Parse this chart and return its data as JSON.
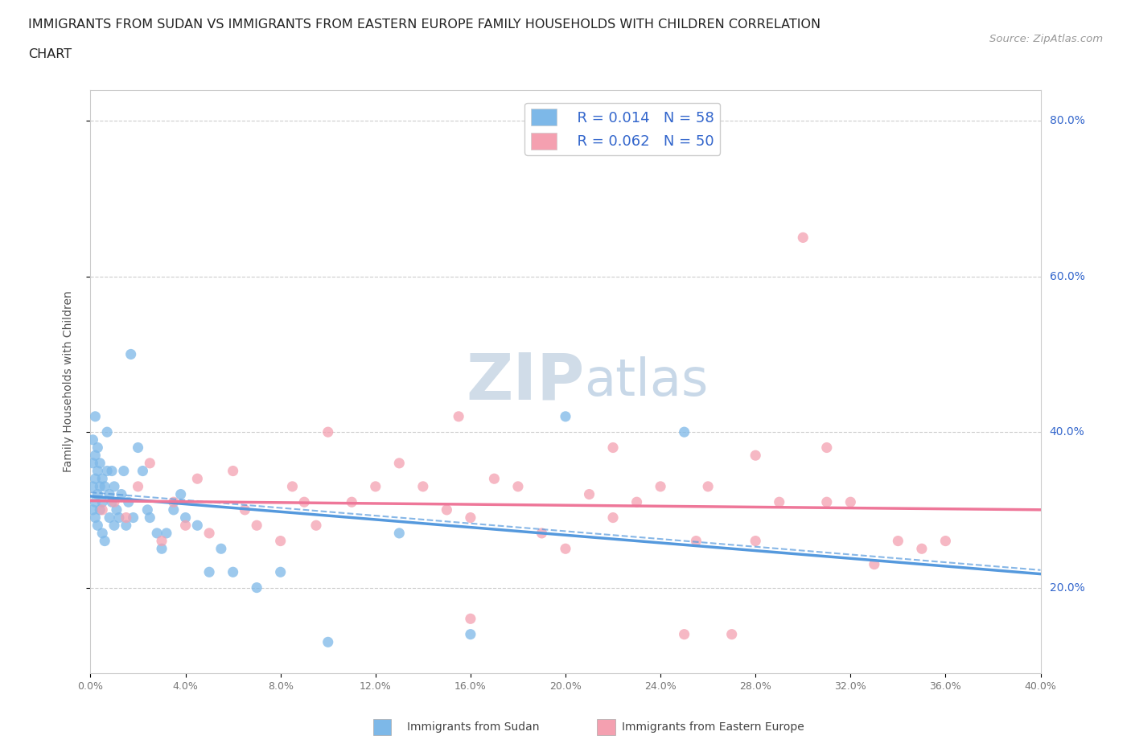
{
  "title_line1": "IMMIGRANTS FROM SUDAN VS IMMIGRANTS FROM EASTERN EUROPE FAMILY HOUSEHOLDS WITH CHILDREN CORRELATION",
  "title_line2": "CHART",
  "source": "Source: ZipAtlas.com",
  "ylabel": "Family Households with Children",
  "legend_label1": "Immigrants from Sudan",
  "legend_label2": "Immigrants from Eastern Europe",
  "r1": 0.014,
  "n1": 58,
  "r2": 0.062,
  "n2": 50,
  "color_sudan": "#7db8e8",
  "color_eastern": "#f4a0b0",
  "color_text_blue": "#3366cc",
  "color_line_sudan": "#5599dd",
  "color_line_eastern": "#ee7799",
  "xlim": [
    0.0,
    0.4
  ],
  "ylim": [
    0.09,
    0.84
  ],
  "yticks_right": [
    0.2,
    0.4,
    0.6,
    0.8
  ],
  "ytick_labels_right": [
    "20.0%",
    "40.0%",
    "60.0%",
    "80.0%"
  ],
  "background_color": "#ffffff",
  "grid_color": "#cccccc",
  "watermark_zip": "ZIP",
  "watermark_atlas": "atlas",
  "watermark_color_zip": "#d0dce8",
  "watermark_color_atlas": "#c8d8e8",
  "sudan_x": [
    0.001,
    0.001,
    0.001,
    0.001,
    0.002,
    0.002,
    0.002,
    0.002,
    0.002,
    0.003,
    0.003,
    0.003,
    0.003,
    0.004,
    0.004,
    0.004,
    0.005,
    0.005,
    0.005,
    0.006,
    0.006,
    0.007,
    0.007,
    0.008,
    0.008,
    0.009,
    0.009,
    0.01,
    0.01,
    0.011,
    0.012,
    0.013,
    0.014,
    0.015,
    0.016,
    0.017,
    0.018,
    0.02,
    0.022,
    0.024,
    0.025,
    0.028,
    0.03,
    0.032,
    0.035,
    0.038,
    0.04,
    0.045,
    0.05,
    0.055,
    0.06,
    0.07,
    0.08,
    0.1,
    0.13,
    0.16,
    0.2,
    0.25
  ],
  "sudan_y": [
    0.3,
    0.33,
    0.36,
    0.39,
    0.29,
    0.31,
    0.34,
    0.37,
    0.42,
    0.28,
    0.32,
    0.35,
    0.38,
    0.3,
    0.33,
    0.36,
    0.27,
    0.31,
    0.34,
    0.26,
    0.33,
    0.35,
    0.4,
    0.29,
    0.32,
    0.31,
    0.35,
    0.28,
    0.33,
    0.3,
    0.29,
    0.32,
    0.35,
    0.28,
    0.31,
    0.5,
    0.29,
    0.38,
    0.35,
    0.3,
    0.29,
    0.27,
    0.25,
    0.27,
    0.3,
    0.32,
    0.29,
    0.28,
    0.22,
    0.25,
    0.22,
    0.2,
    0.22,
    0.13,
    0.27,
    0.14,
    0.42,
    0.4
  ],
  "eastern_x": [
    0.005,
    0.01,
    0.015,
    0.02,
    0.025,
    0.03,
    0.035,
    0.04,
    0.045,
    0.05,
    0.06,
    0.065,
    0.07,
    0.08,
    0.085,
    0.09,
    0.095,
    0.1,
    0.11,
    0.12,
    0.13,
    0.14,
    0.15,
    0.155,
    0.16,
    0.17,
    0.18,
    0.19,
    0.2,
    0.21,
    0.22,
    0.23,
    0.24,
    0.255,
    0.26,
    0.27,
    0.28,
    0.29,
    0.3,
    0.31,
    0.32,
    0.33,
    0.34,
    0.35,
    0.36,
    0.28,
    0.22,
    0.25,
    0.31,
    0.16
  ],
  "eastern_y": [
    0.3,
    0.31,
    0.29,
    0.33,
    0.36,
    0.26,
    0.31,
    0.28,
    0.34,
    0.27,
    0.35,
    0.3,
    0.28,
    0.26,
    0.33,
    0.31,
    0.28,
    0.4,
    0.31,
    0.33,
    0.36,
    0.33,
    0.3,
    0.42,
    0.29,
    0.34,
    0.33,
    0.27,
    0.25,
    0.32,
    0.29,
    0.31,
    0.33,
    0.26,
    0.33,
    0.14,
    0.26,
    0.31,
    0.65,
    0.31,
    0.31,
    0.23,
    0.26,
    0.25,
    0.26,
    0.37,
    0.38,
    0.14,
    0.38,
    0.16
  ]
}
